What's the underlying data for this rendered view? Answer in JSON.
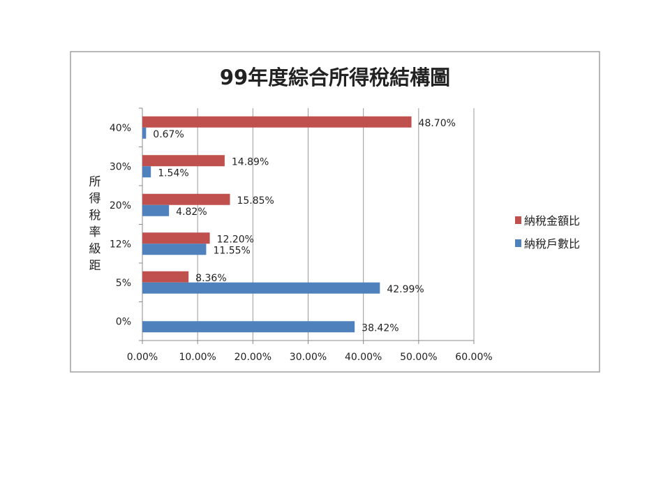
{
  "chart_data": {
    "type": "bar",
    "orientation": "horizontal",
    "title": "99年度綜合所得稅結構圖",
    "ylabel": "所得稅率級距",
    "xlabel": "",
    "categories": [
      "0%",
      "5%",
      "12%",
      "20%",
      "30%",
      "40%"
    ],
    "series": [
      {
        "name": "納稅金額比",
        "color": "#C0504D",
        "values": [
          null,
          8.36,
          12.2,
          15.85,
          14.89,
          48.7
        ],
        "labels": [
          "",
          "8.36%",
          "12.20%",
          "15.85%",
          "14.89%",
          "48.70%"
        ]
      },
      {
        "name": "納稅戶數比",
        "color": "#4F81BD",
        "values": [
          38.42,
          42.99,
          11.55,
          4.82,
          1.54,
          0.67
        ],
        "labels": [
          "38.42%",
          "42.99%",
          "11.55%",
          "4.82%",
          "1.54%",
          "0.67%"
        ]
      }
    ],
    "xlim": [
      0,
      60
    ],
    "xticks": [
      "0.00%",
      "10.00%",
      "20.00%",
      "30.00%",
      "40.00%",
      "50.00%",
      "60.00%"
    ],
    "grid": true,
    "legend_position": "right"
  }
}
